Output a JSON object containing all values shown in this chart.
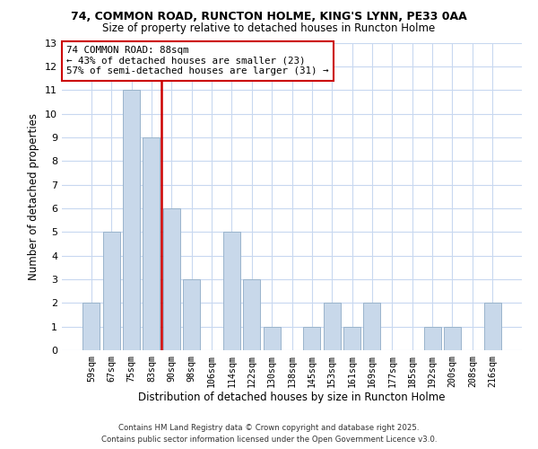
{
  "title_line1": "74, COMMON ROAD, RUNCTON HOLME, KING'S LYNN, PE33 0AA",
  "title_line2": "Size of property relative to detached houses in Runcton Holme",
  "xlabel": "Distribution of detached houses by size in Runcton Holme",
  "ylabel": "Number of detached properties",
  "categories": [
    "59sqm",
    "67sqm",
    "75sqm",
    "83sqm",
    "90sqm",
    "98sqm",
    "106sqm",
    "114sqm",
    "122sqm",
    "130sqm",
    "138sqm",
    "145sqm",
    "153sqm",
    "161sqm",
    "169sqm",
    "177sqm",
    "185sqm",
    "192sqm",
    "200sqm",
    "208sqm",
    "216sqm"
  ],
  "values": [
    2,
    5,
    11,
    9,
    6,
    3,
    0,
    5,
    3,
    1,
    0,
    1,
    2,
    1,
    2,
    0,
    0,
    1,
    1,
    0,
    2
  ],
  "bar_color": "#c8d8ea",
  "bar_edge_color": "#9ab4cc",
  "vline_color": "#cc0000",
  "ylim": [
    0,
    13
  ],
  "yticks": [
    0,
    1,
    2,
    3,
    4,
    5,
    6,
    7,
    8,
    9,
    10,
    11,
    12,
    13
  ],
  "annotation_title": "74 COMMON ROAD: 88sqm",
  "annotation_line2": "← 43% of detached houses are smaller (23)",
  "annotation_line3": "57% of semi-detached houses are larger (31) →",
  "annotation_box_color": "#ffffff",
  "annotation_box_edge_color": "#cc0000",
  "footer_line1": "Contains HM Land Registry data © Crown copyright and database right 2025.",
  "footer_line2": "Contains public sector information licensed under the Open Government Licence v3.0.",
  "background_color": "#ffffff",
  "grid_color": "#c8d8f0"
}
